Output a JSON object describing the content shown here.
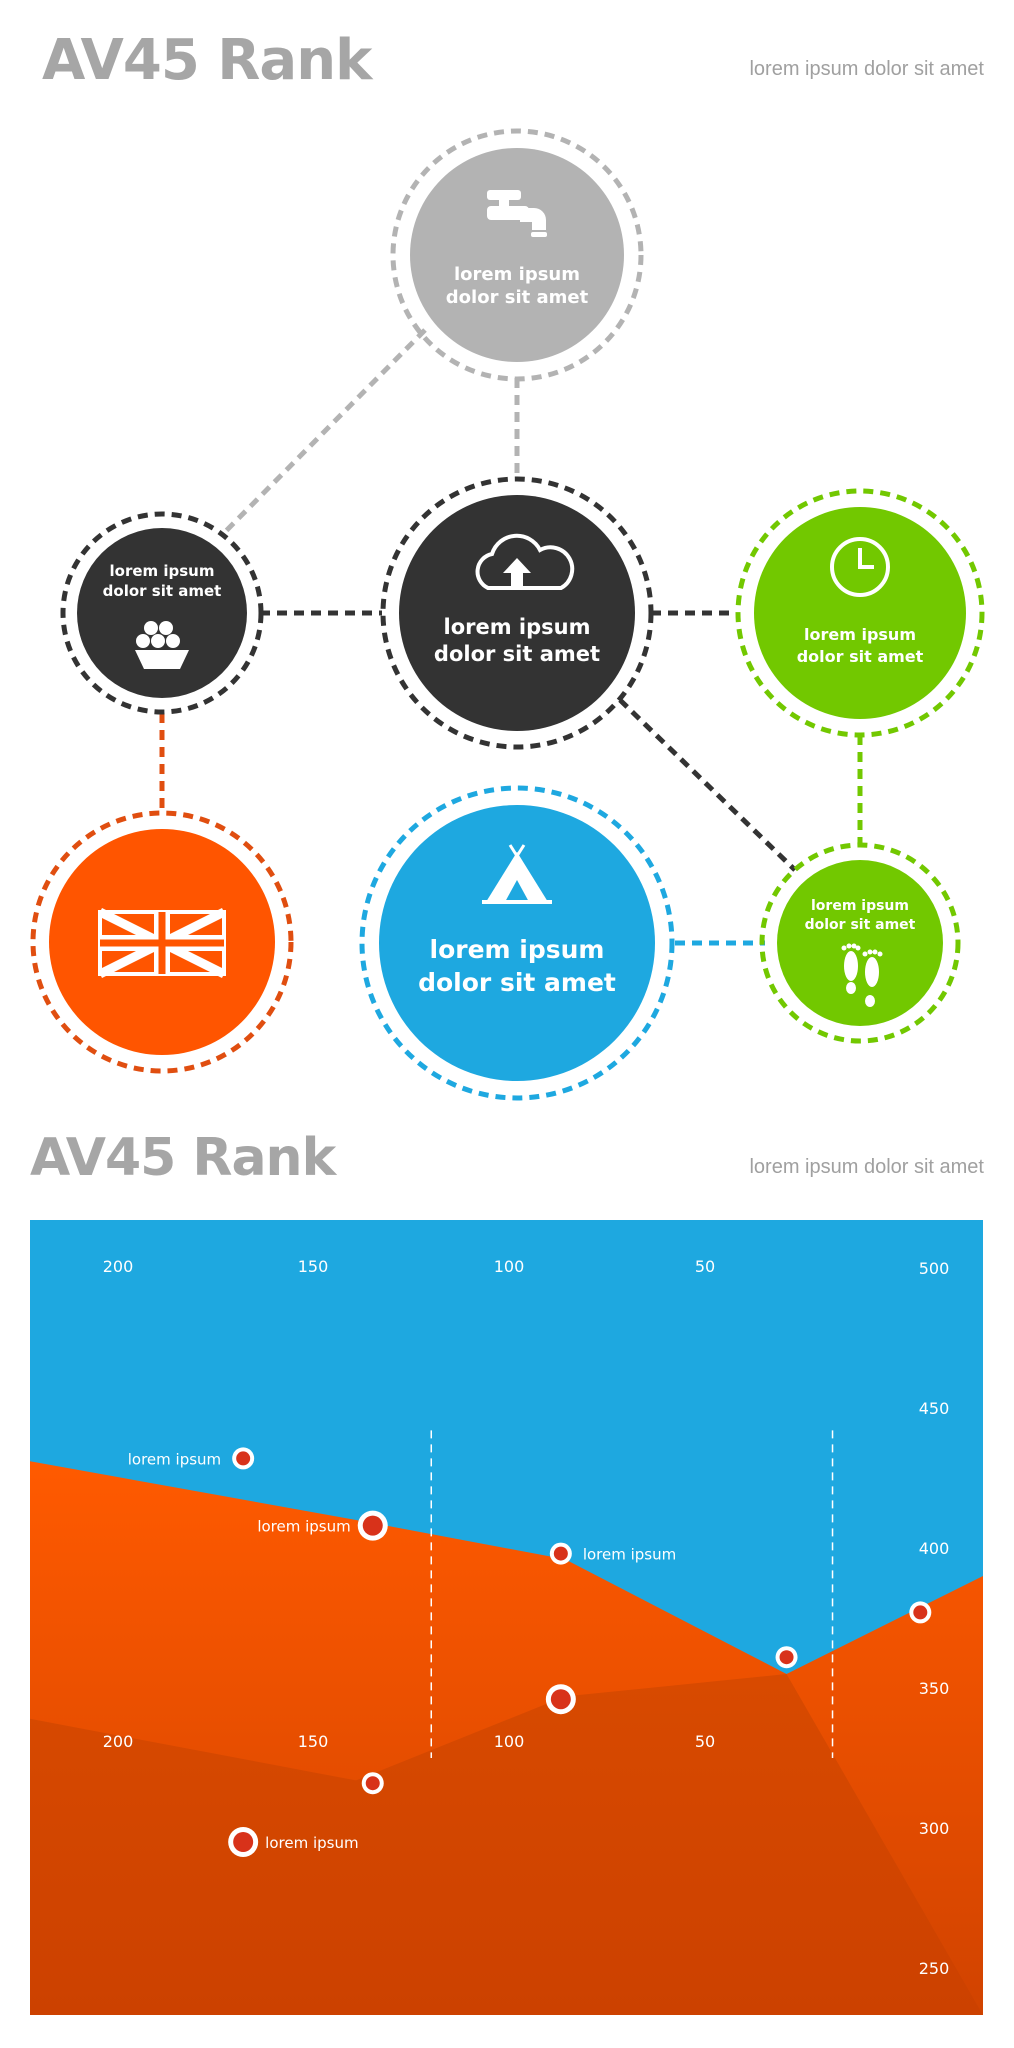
{
  "section1": {
    "title": "AV45 Rank",
    "subtitle": "lorem ipsum dolor sit amet"
  },
  "section2": {
    "title": "AV45 Rank",
    "subtitle": "lorem ipsum dolor sit amet"
  },
  "colors": {
    "gray": "#b3b3b3",
    "dark": "#333333",
    "green": "#72c800",
    "orange": "#ff5500",
    "blue": "#1ea8e0"
  },
  "nodes": [
    {
      "id": "faucet",
      "label1": "lorem ipsum",
      "label2": "dolor sit amet",
      "icon": "faucet-icon",
      "color": "gray"
    },
    {
      "id": "basket",
      "label1": "lorem ipsum",
      "label2": "dolor sit amet",
      "icon": "basket-icon",
      "color": "dark"
    },
    {
      "id": "cloud",
      "label1": "lorem ipsum",
      "label2": "dolor sit amet",
      "icon": "cloud-upload-icon",
      "color": "dark"
    },
    {
      "id": "clock",
      "label1": "lorem ipsum",
      "label2": "dolor sit amet",
      "icon": "clock-icon",
      "color": "green"
    },
    {
      "id": "flag",
      "label1": "",
      "label2": "",
      "icon": "uk-flag-icon",
      "color": "orange"
    },
    {
      "id": "tent",
      "label1": "lorem ipsum",
      "label2": "dolor sit amet",
      "icon": "tent-icon",
      "color": "blue"
    },
    {
      "id": "feet",
      "label1": "lorem ipsum",
      "label2": "dolor sit amet",
      "icon": "footprints-icon",
      "color": "green"
    }
  ],
  "chart_data": {
    "type": "area",
    "x_ticks": [
      "200",
      "150",
      "100",
      "50"
    ],
    "y_ticks": [
      "500",
      "450",
      "400",
      "350",
      "300",
      "250"
    ],
    "ylim": [
      250,
      500
    ],
    "series": [
      {
        "color": "#ff5500",
        "points": [
          [
            228,
            431
          ],
          [
            150,
            410
          ],
          [
            100,
            396
          ],
          [
            47,
            355
          ],
          [
            0,
            390
          ]
        ]
      },
      {
        "color": "#d84400",
        "points": [
          [
            228,
            339
          ],
          [
            150,
            317
          ],
          [
            100,
            347
          ],
          [
            47,
            355
          ]
        ]
      }
    ],
    "markers": [
      {
        "x": 177,
        "y": 432,
        "label": "lorem ipsum",
        "big": false,
        "side": "left"
      },
      {
        "x": 146,
        "y": 408,
        "label": "lorem ipsum",
        "big": true,
        "side": "left"
      },
      {
        "x": 101,
        "y": 398,
        "label": "lorem ipsum",
        "big": false,
        "side": "right"
      },
      {
        "x": 47,
        "y": 361,
        "label": "",
        "big": false,
        "side": "none"
      },
      {
        "x": 15,
        "y": 377,
        "label": "",
        "big": false,
        "side": "none"
      },
      {
        "x": 101,
        "y": 346,
        "label": "",
        "big": true,
        "side": "none"
      },
      {
        "x": 146,
        "y": 316,
        "label": "",
        "big": false,
        "side": "none"
      },
      {
        "x": 177,
        "y": 295,
        "label": "lorem ipsum",
        "big": true,
        "side": "right"
      }
    ]
  }
}
